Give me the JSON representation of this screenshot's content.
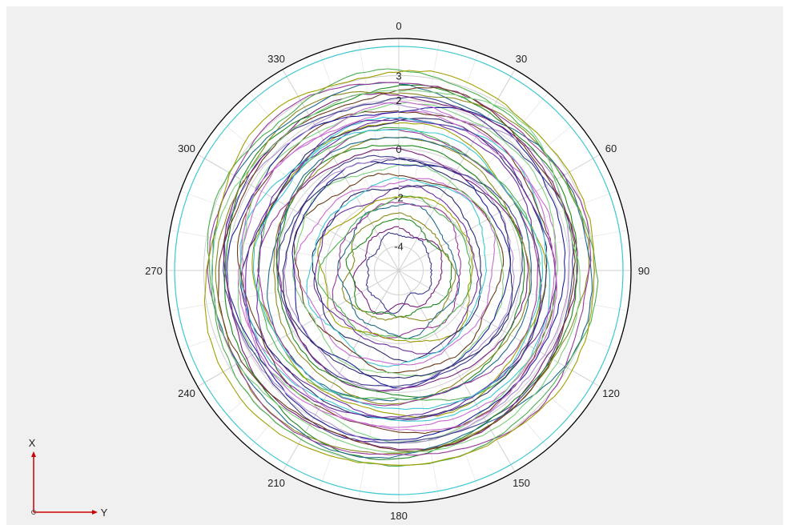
{
  "chart_data": {
    "type": "polar-line",
    "angular_ticks": [
      "0",
      "30",
      "60",
      "90",
      "120",
      "150",
      "180",
      "210",
      "240",
      "270",
      "300",
      "330"
    ],
    "radial_ticks": [
      {
        "value": -4,
        "label": "-4"
      },
      {
        "value": -2,
        "label": "-2"
      },
      {
        "value": 0,
        "label": "0"
      },
      {
        "value": 2,
        "label": "2"
      },
      {
        "value": 3,
        "label": "3"
      }
    ],
    "rlim": [
      -5,
      4
    ],
    "series_count": 46,
    "series_colors": [
      "#3c3c8c",
      "#7a1f7a",
      "#1f8a1f",
      "#8a8a1f",
      "#1f6a8a",
      "#9a3a9a",
      "#4caf50",
      "#a0a000",
      "#6b2fa0",
      "#2a2a6a",
      "#3cc8d0",
      "#c86bd0",
      "#6a3a1a",
      "#7ed07e",
      "#1f1f9a",
      "#b090d0"
    ],
    "series_radii": [
      -3.6,
      -3.3,
      -3.0,
      -2.8,
      -2.5,
      -2.3,
      -2.1,
      -1.9,
      -1.7,
      -1.5,
      -1.3,
      -1.1,
      -0.9,
      -0.7,
      -0.5,
      -0.3,
      -0.15,
      0.0,
      0.15,
      0.3,
      0.45,
      0.6,
      0.75,
      0.9,
      1.0,
      1.15,
      1.3,
      1.45,
      1.55,
      1.7,
      1.85,
      2.0,
      2.1,
      2.25,
      2.4,
      2.55,
      2.65,
      2.8,
      2.95,
      3.1,
      1.2,
      -0.4,
      0.8,
      1.6,
      2.3,
      2.5
    ],
    "grid": true
  },
  "axis_indicator": {
    "x_label": "X",
    "y_label": "Y"
  },
  "colors": {
    "background": "#f0f0f0",
    "plot_area": "#ffffff",
    "grid": "#d0d0d0",
    "outer_circle": "#000000",
    "axis_arrow": "#cc0000"
  }
}
